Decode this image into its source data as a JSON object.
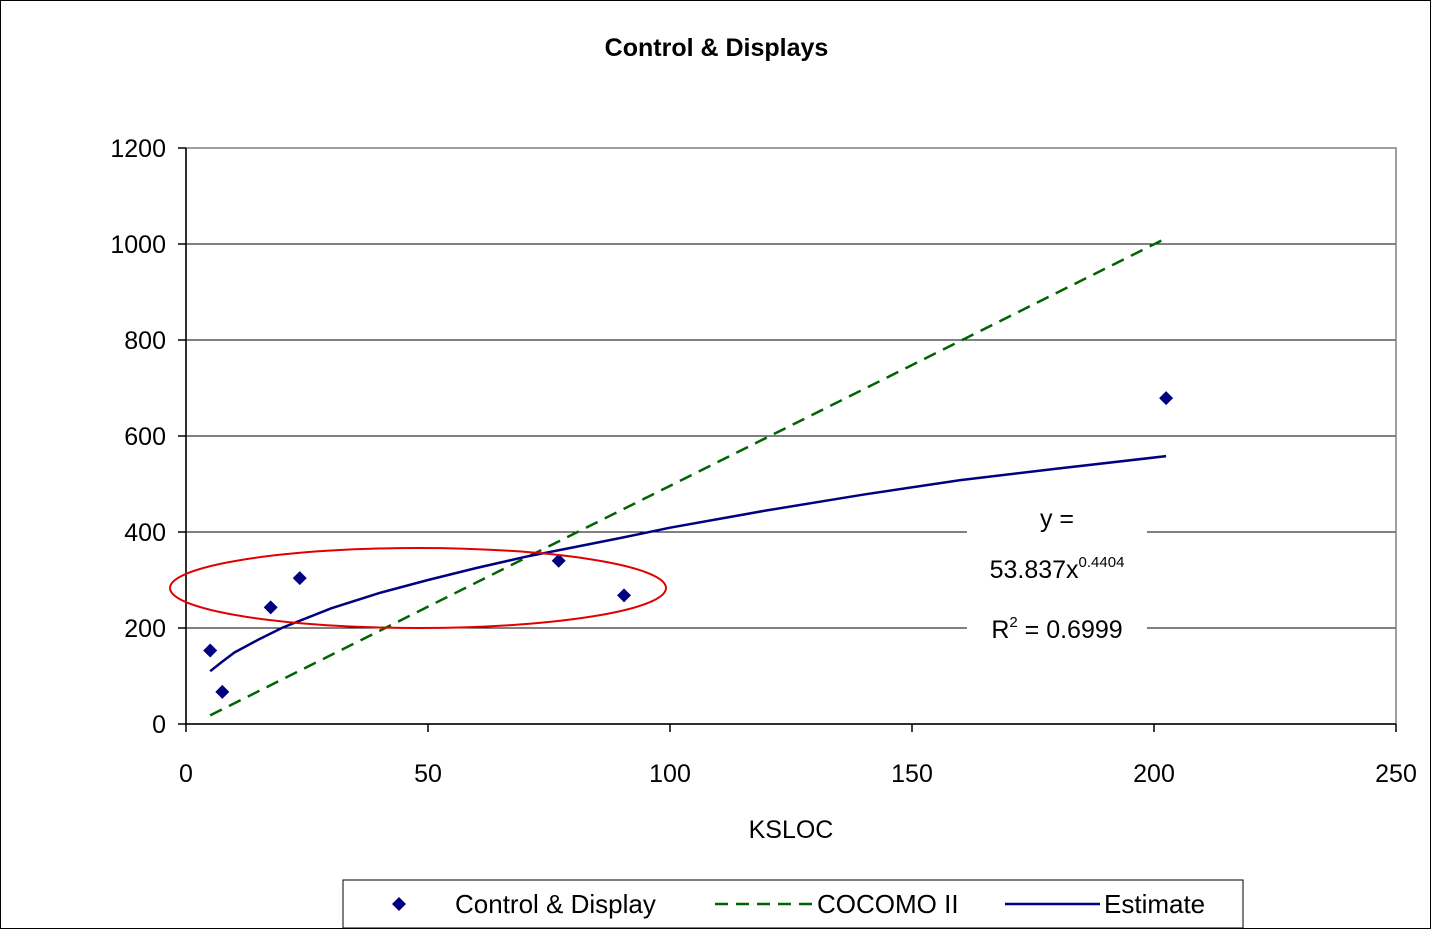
{
  "chart_data": {
    "type": "scatter",
    "title": "Control & Displays",
    "xlabel": "KSLOC",
    "ylabel": "",
    "xlim": [
      0,
      250
    ],
    "ylim": [
      0,
      1200
    ],
    "xticks": [
      0,
      50,
      100,
      150,
      200,
      250
    ],
    "yticks": [
      0,
      200,
      400,
      600,
      800,
      1000,
      1200
    ],
    "grid": "horizontal",
    "legend_position": "bottom",
    "series": [
      {
        "name": "Control & Display",
        "kind": "points",
        "marker": "diamond",
        "color": "#000080",
        "x": [
          5,
          7.5,
          17.5,
          23.5,
          77,
          90.5,
          202.5
        ],
        "y": [
          153,
          67,
          243,
          304,
          340,
          268,
          679
        ]
      },
      {
        "name": "COCOMO II",
        "kind": "line",
        "style": "dashed",
        "color": "#006400",
        "x": [
          5,
          202.5
        ],
        "y": [
          18,
          1012
        ]
      },
      {
        "name": "Estimate",
        "kind": "curve",
        "style": "solid",
        "color": "#000080",
        "x": [
          5,
          7.5,
          10,
          15,
          20,
          30,
          40,
          50,
          60,
          70,
          80,
          90,
          100,
          120,
          140,
          160,
          180,
          202.5
        ],
        "y": [
          110,
          130,
          149,
          176,
          201,
          241,
          273,
          300,
          325,
          348,
          368,
          388,
          409,
          445,
          478,
          508,
          532,
          558
        ]
      }
    ],
    "annotations": {
      "equation_line1": "y =",
      "equation_base": "53.837x",
      "equation_exponent": "0.4404",
      "r2_label": "R",
      "r2_sup": "2",
      "r2_value": " = 0.6999"
    },
    "highlight": {
      "shape": "ellipse",
      "color": "#e00000"
    }
  }
}
